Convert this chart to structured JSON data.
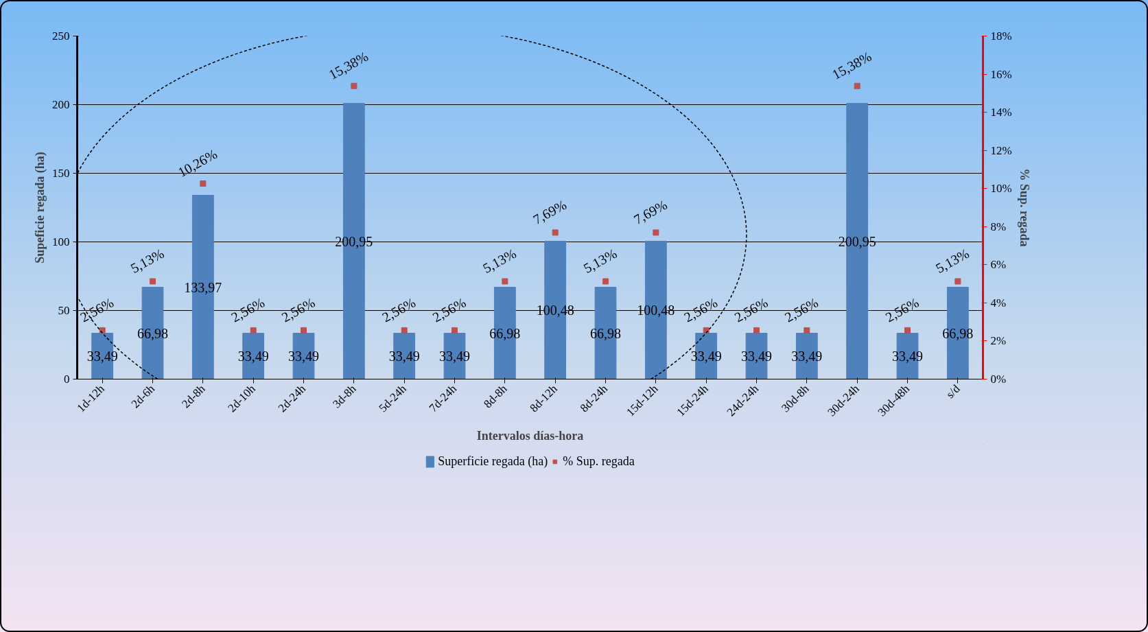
{
  "chart_data": {
    "type": "bar",
    "xlabel": "Intervalos días-hora",
    "ylabel": "Supeficie regada (ha)",
    "y2label": "% Sup. regada",
    "categories": [
      "1d-12h",
      "2d-6h",
      "2d-8h",
      "2d-10h",
      "2d-24h",
      "3d-8h",
      "5d-24h",
      "7d-24h",
      "8d-8h",
      "8d-12h",
      "8d-24h",
      "15d-12h",
      "15d-24h",
      "24d-24h",
      "30d-8h",
      "30d-24h",
      "30d-48h",
      "s/d"
    ],
    "series": [
      {
        "name": "Superficie regada (ha)",
        "color": "#4f81bd",
        "values": [
          33.49,
          66.98,
          133.97,
          33.49,
          33.49,
          200.95,
          33.49,
          33.49,
          66.98,
          100.48,
          66.98,
          100.48,
          33.49,
          33.49,
          33.49,
          200.95,
          33.49,
          66.98
        ],
        "value_labels": [
          "33,49",
          "66,98",
          "133,97",
          "33,49",
          "33,49",
          "200,95",
          "33,49",
          "33,49",
          "66,98",
          "100,48",
          "66,98",
          "100,48",
          "33,49",
          "33,49",
          "33,49",
          "200,95",
          "33,49",
          "66,98"
        ]
      },
      {
        "name": "% Sup. regada",
        "type": "scatter",
        "axis": "y2",
        "marker": "square",
        "color": "#c0504d",
        "values": [
          2.56,
          5.13,
          10.26,
          2.56,
          2.56,
          15.38,
          2.56,
          2.56,
          5.13,
          7.69,
          5.13,
          7.69,
          2.56,
          2.56,
          2.56,
          15.38,
          2.56,
          5.13
        ],
        "value_labels": [
          "2,56%",
          "5,13%",
          "10,26%",
          "2,56%",
          "2,56%",
          "15,38%",
          "2,56%",
          "2,56%",
          "5,13%",
          "7,69%",
          "5,13%",
          "7,69%",
          "2,56%",
          "2,56%",
          "2,56%",
          "15,38%",
          "2,56%",
          "5,13%"
        ]
      }
    ],
    "ylim": [
      0,
      250
    ],
    "yticks": [
      0,
      50,
      100,
      150,
      200,
      250
    ],
    "y2lim": [
      0,
      18
    ],
    "y2ticks": [
      {
        "value": 0,
        "label": "0%"
      },
      {
        "value": 2,
        "label": "2%"
      },
      {
        "value": 4,
        "label": "4%"
      },
      {
        "value": 6,
        "label": "6%"
      },
      {
        "value": 8,
        "label": "8%"
      },
      {
        "value": 10,
        "label": "10%"
      },
      {
        "value": 12,
        "label": "12%"
      },
      {
        "value": 14,
        "label": "14%"
      },
      {
        "value": 16,
        "label": "16%"
      },
      {
        "value": 18,
        "label": "18%"
      }
    ],
    "grid": "y",
    "legend": "bottom"
  }
}
